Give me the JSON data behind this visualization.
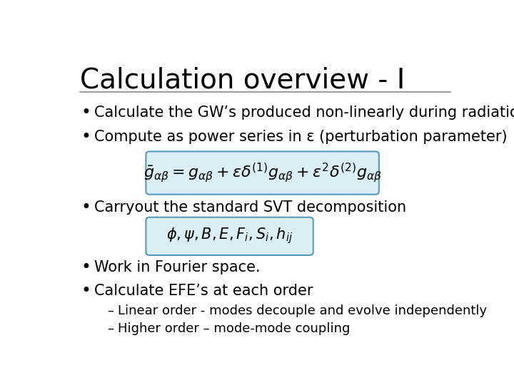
{
  "title": "Calculation overview - I",
  "bg_color": "#ffffff",
  "title_fontsize": 28,
  "title_color": "#000000",
  "bullet_fontsize": 15,
  "sub_bullet_fontsize": 13,
  "line_color": "#888888",
  "box_bg_color": "#dceef5",
  "box_edge_color": "#5599bb",
  "bullets": [
    "Calculate the GW’s produced non-linearly during radiation era.",
    "Compute as power series in ε (perturbation parameter)",
    "Carryout the standard SVT decomposition",
    "Work in Fourier space.",
    "Calculate EFE’s at each order"
  ],
  "sub_bullets": [
    "Linear order - modes decouple and evolve independently",
    "Higher order – mode-mode coupling"
  ],
  "eq1": "$\\bar{g}_{\\alpha\\beta} = g_{\\alpha\\beta} + \\varepsilon\\delta^{(1)}g_{\\alpha\\beta} + \\varepsilon^2\\delta^{(2)}g_{\\alpha\\beta}$",
  "eq2": "$\\phi, \\psi, B, E, F_i, S_i, h_{ij}$"
}
